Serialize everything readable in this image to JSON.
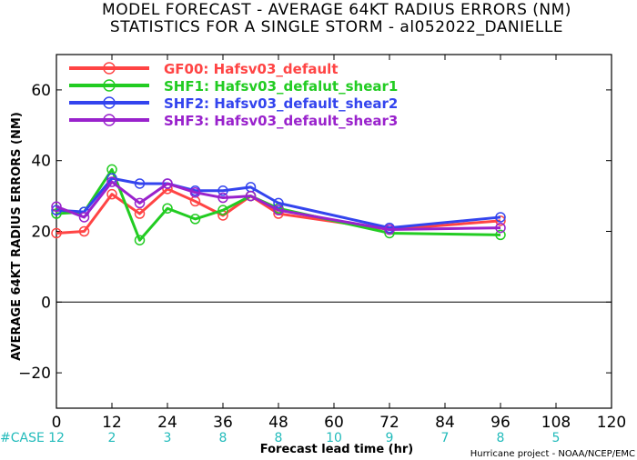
{
  "chart_data": {
    "type": "line",
    "title": "MODEL FORECAST - AVERAGE 64KT RADIUS ERRORS (NM)",
    "subtitle": "STATISTICS FOR A SINGLE STORM - al052022_DANIELLE",
    "xlabel": "Forecast lead time (hr)",
    "ylabel": "AVERAGE 64KT RADIUS ERRORS (NM)",
    "xlim": [
      0,
      120
    ],
    "ylim": [
      -30,
      70
    ],
    "xticks": [
      0,
      12,
      24,
      36,
      48,
      60,
      72,
      84,
      96,
      108,
      120
    ],
    "yticks": [
      -20,
      0,
      20,
      40,
      60
    ],
    "zero_line": true,
    "legend_position": "top-left",
    "series": [
      {
        "name": "GF00: Hafsv03_default",
        "color": "#ff4444",
        "x": [
          0,
          6,
          12,
          18,
          24,
          30,
          36,
          42,
          48,
          72,
          96
        ],
        "y": [
          19.5,
          20,
          30.5,
          25,
          32,
          28.5,
          24.5,
          30,
          25,
          20.5,
          23
        ]
      },
      {
        "name": "SHF1: Hafsv03_defalut_shear1",
        "color": "#22cc22",
        "x": [
          0,
          6,
          12,
          18,
          24,
          30,
          36,
          42,
          48,
          72,
          96
        ],
        "y": [
          25,
          25.5,
          37.5,
          17.5,
          26.5,
          23.5,
          26,
          30,
          26.5,
          19.5,
          19
        ]
      },
      {
        "name": "SHF2: Hafsv03_default_shear2",
        "color": "#3344ee",
        "x": [
          0,
          6,
          12,
          18,
          24,
          30,
          36,
          42,
          48,
          72,
          96
        ],
        "y": [
          26,
          25.5,
          35,
          33.5,
          33.5,
          31.5,
          31.5,
          32.5,
          28,
          21,
          24
        ]
      },
      {
        "name": "SHF3: Hafsv03_default_shear3",
        "color": "#9922cc",
        "x": [
          0,
          6,
          12,
          18,
          24,
          30,
          36,
          42,
          48,
          72,
          96
        ],
        "y": [
          27,
          24,
          34,
          28,
          33.5,
          31,
          29.5,
          30,
          26,
          20.5,
          21
        ]
      }
    ],
    "case_label": "#CASE",
    "case_counts": [
      {
        "x": 0,
        "label": "12"
      },
      {
        "x": 12,
        "label": "2"
      },
      {
        "x": 24,
        "label": "3"
      },
      {
        "x": 36,
        "label": "8"
      },
      {
        "x": 48,
        "label": "8"
      },
      {
        "x": 60,
        "label": "10"
      },
      {
        "x": 72,
        "label": "9"
      },
      {
        "x": 84,
        "label": "7"
      },
      {
        "x": 96,
        "label": "8"
      },
      {
        "x": 108,
        "label": "5"
      }
    ],
    "credit": "Hurricane project - NOAA/NCEP/EMC"
  }
}
